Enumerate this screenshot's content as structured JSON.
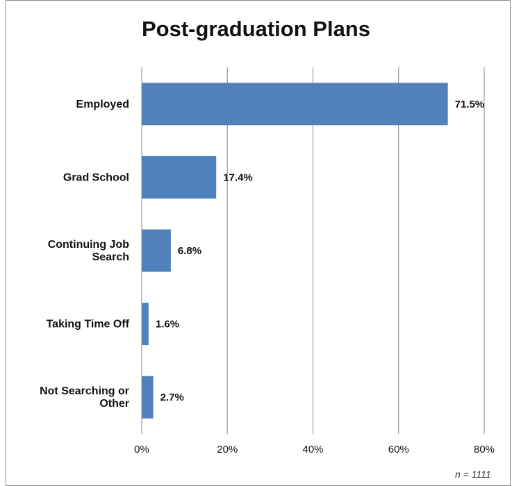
{
  "chart_data": {
    "type": "bar",
    "orientation": "horizontal",
    "title": "Post-graduation Plans",
    "categories": [
      "Employed",
      "Grad School",
      "Continuing Job Search",
      "Taking Time Off",
      "Not Searching or Other"
    ],
    "category_lines": [
      [
        "Employed"
      ],
      [
        "Grad School"
      ],
      [
        "Continuing Job",
        "Search"
      ],
      [
        "Taking Time Off"
      ],
      [
        "Not Searching or",
        "Other"
      ]
    ],
    "values": [
      71.5,
      17.4,
      6.8,
      1.6,
      2.7
    ],
    "data_labels": [
      "71.5%",
      "17.4%",
      "6.8%",
      "1.6%",
      "2.7%"
    ],
    "xlim": [
      0,
      80
    ],
    "x_ticks": [
      0,
      20,
      40,
      60,
      80
    ],
    "x_tick_labels": [
      "0%",
      "20%",
      "40%",
      "60%",
      "80%"
    ],
    "xlabel": "",
    "ylabel": "",
    "grid": true,
    "bar_color": "#4f81bd",
    "footnote": "n = 1111"
  }
}
